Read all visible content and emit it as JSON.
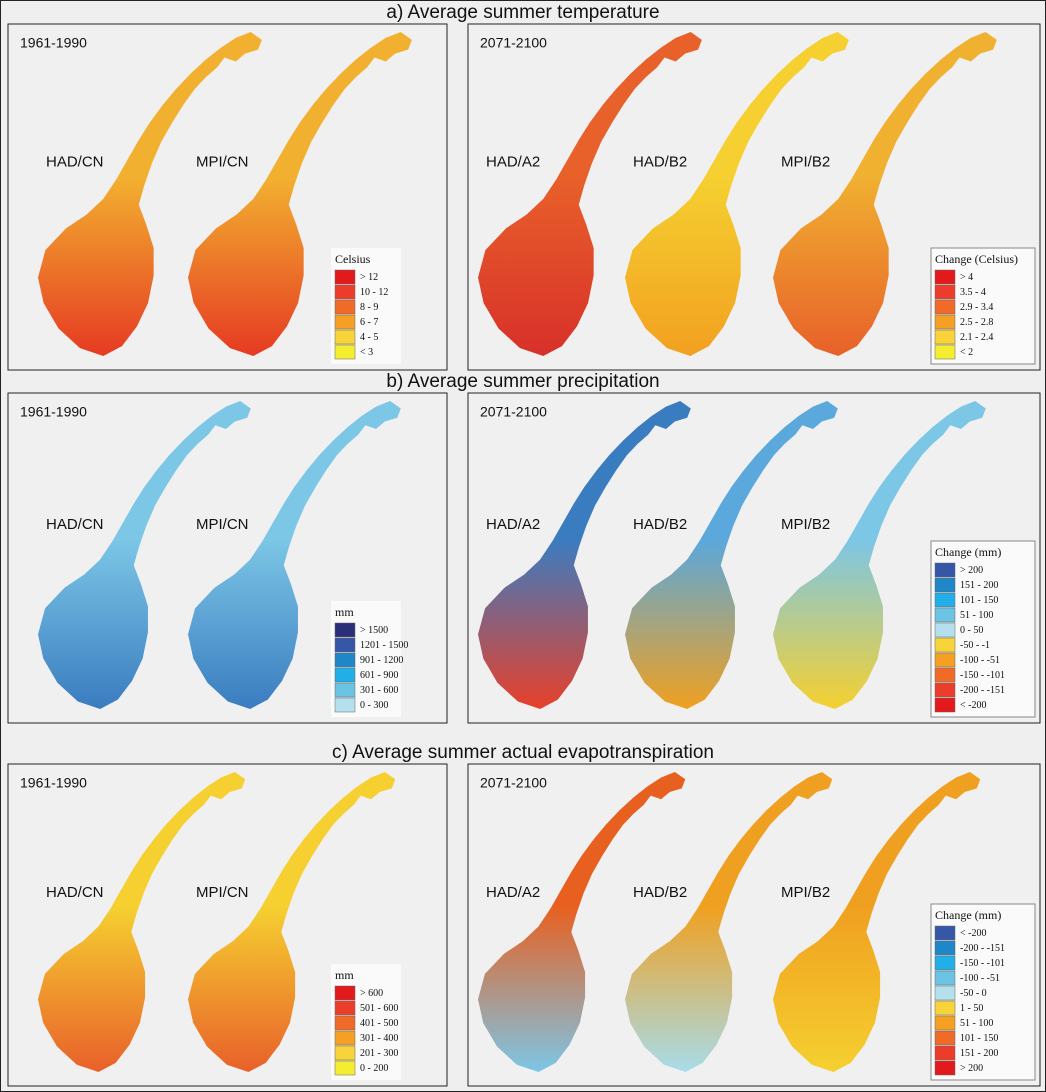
{
  "sections": [
    {
      "title": "a) Average summer temperature",
      "left": {
        "period": "1961-1990",
        "maps": [
          "HAD/CN",
          "MPI/CN"
        ],
        "legend": {
          "title": "Celsius",
          "items": [
            {
              "label": "> 12",
              "color": "#e31a1c"
            },
            {
              "label": "10 - 12",
              "color": "#ec3d2a"
            },
            {
              "label": "8 - 9",
              "color": "#f06a28"
            },
            {
              "label": "6 - 7",
              "color": "#f5a023"
            },
            {
              "label": "4 - 5",
              "color": "#f8d33a"
            },
            {
              "label": "< 3",
              "color": "#f5ee30"
            }
          ]
        }
      },
      "right": {
        "period": "2071-2100",
        "maps": [
          "HAD/A2",
          "HAD/B2",
          "MPI/B2"
        ],
        "legend": {
          "title": "Change (Celsius)",
          "items": [
            {
              "label": "> 4",
              "color": "#e31a1c"
            },
            {
              "label": "3.5 - 4",
              "color": "#ec3d2a"
            },
            {
              "label": "2.9 - 3.4",
              "color": "#f06a28"
            },
            {
              "label": "2.5 - 2.8",
              "color": "#f5a023"
            },
            {
              "label": "2.1 - 2.4",
              "color": "#f8d33a"
            },
            {
              "label": "< 2",
              "color": "#f5ee30"
            }
          ]
        }
      }
    },
    {
      "title": "b) Average summer precipitation",
      "left": {
        "period": "1961-1990",
        "maps": [
          "HAD/CN",
          "MPI/CN"
        ],
        "legend": {
          "title": "mm",
          "items": [
            {
              "label": "> 1500",
              "color": "#2b2f7a"
            },
            {
              "label": "1201 - 1500",
              "color": "#3656a8"
            },
            {
              "label": "901 - 1200",
              "color": "#1f86c8"
            },
            {
              "label": "601 - 900",
              "color": "#22aee6"
            },
            {
              "label": "301 - 600",
              "color": "#6cc4e4"
            },
            {
              "label": "0 - 300",
              "color": "#b3e0ec"
            }
          ]
        }
      },
      "right": {
        "period": "2071-2100",
        "maps": [
          "HAD/A2",
          "HAD/B2",
          "MPI/B2"
        ],
        "legend": {
          "title": "Change (mm)",
          "items": [
            {
              "label": "> 200",
              "color": "#3656a8"
            },
            {
              "label": "151 - 200",
              "color": "#1f86c8"
            },
            {
              "label": "101 - 150",
              "color": "#22aee6"
            },
            {
              "label": "51 - 100",
              "color": "#6cc4e4"
            },
            {
              "label": "0 - 50",
              "color": "#b3e0ec"
            },
            {
              "label": "-50 - -1",
              "color": "#f8d33a"
            },
            {
              "label": "-100 - -51",
              "color": "#f5a023"
            },
            {
              "label": "-150 - -101",
              "color": "#f06a28"
            },
            {
              "label": "-200 - -151",
              "color": "#ec3d2a"
            },
            {
              "label": "< -200",
              "color": "#e31a1c"
            }
          ]
        }
      }
    },
    {
      "title": "c) Average summer actual evapotranspiration",
      "left": {
        "period": "1961-1990",
        "maps": [
          "HAD/CN",
          "MPI/CN"
        ],
        "legend": {
          "title": "mm",
          "items": [
            {
              "label": "> 600",
              "color": "#e31a1c"
            },
            {
              "label": "501 - 600",
              "color": "#ec3d2a"
            },
            {
              "label": "401 - 500",
              "color": "#f06a28"
            },
            {
              "label": "301 - 400",
              "color": "#f5a023"
            },
            {
              "label": "201 - 300",
              "color": "#f8d33a"
            },
            {
              "label": "0 - 200",
              "color": "#f5ee30"
            }
          ]
        }
      },
      "right": {
        "period": "2071-2100",
        "maps": [
          "HAD/A2",
          "HAD/B2",
          "MPI/B2"
        ],
        "legend": {
          "title": "Change (mm)",
          "items": [
            {
              "label": "< -200",
              "color": "#3656a8"
            },
            {
              "label": "-200 - -151",
              "color": "#1f86c8"
            },
            {
              "label": "-150 - -101",
              "color": "#22aee6"
            },
            {
              "label": "-100 - -51",
              "color": "#6cc4e4"
            },
            {
              "label": "-50 - 0",
              "color": "#b3e0ec"
            },
            {
              "label": "1 - 50",
              "color": "#f8d33a"
            },
            {
              "label": "51 - 100",
              "color": "#f5a023"
            },
            {
              "label": "101 - 150",
              "color": "#f06a28"
            },
            {
              "label": "151 - 200",
              "color": "#ec3d2a"
            },
            {
              "label": "> 200",
              "color": "#e31a1c"
            }
          ]
        }
      }
    }
  ]
}
